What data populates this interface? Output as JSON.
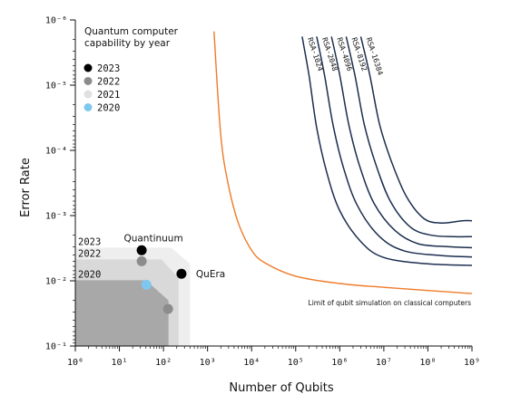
{
  "chart_data": {
    "type": "line",
    "xlabel": "Number of Qubits",
    "ylabel": "Error Rate",
    "x_scale": "log",
    "y_scale": "log",
    "xlim": [
      1,
      1000000000
    ],
    "ylim": [
      0.1,
      1e-06
    ],
    "x_ticks": [
      {
        "value": 1,
        "label": "10⁰"
      },
      {
        "value": 10,
        "label": "10¹"
      },
      {
        "value": 100,
        "label": "10²"
      },
      {
        "value": 1000,
        "label": "10³"
      },
      {
        "value": 10000,
        "label": "10⁴"
      },
      {
        "value": 100000,
        "label": "10⁵"
      },
      {
        "value": 1000000,
        "label": "10⁶"
      },
      {
        "value": 10000000,
        "label": "10⁷"
      },
      {
        "value": 100000000,
        "label": "10⁸"
      },
      {
        "value": 1000000000,
        "label": "10⁹"
      }
    ],
    "y_ticks": [
      {
        "value": 1e-06,
        "label": "10⁻⁶"
      },
      {
        "value": 1e-05,
        "label": "10⁻⁵"
      },
      {
        "value": 0.0001,
        "label": "10⁻⁴"
      },
      {
        "value": 0.001,
        "label": "10⁻³"
      },
      {
        "value": 0.01,
        "label": "10⁻²"
      },
      {
        "value": 0.1,
        "label": "10⁻¹"
      }
    ],
    "legend": {
      "title": "Quantum computer capability by year",
      "title_lines": [
        "Quantum computer",
        "capability by year"
      ],
      "placement": "top-left",
      "entries": [
        {
          "label": "2023",
          "color": "#000000"
        },
        {
          "label": "2022",
          "color": "#8c8c8c"
        },
        {
          "label": "2021",
          "color": "#e0e0e0"
        },
        {
          "label": "2020",
          "color": "#7ec8f0"
        }
      ]
    },
    "capability_regions": [
      {
        "label": "2023",
        "color": "#eeeeee",
        "max_qubits": 400,
        "corner_qubits": 150,
        "min_error": 0.0031,
        "corner_error": 0.0055
      },
      {
        "label": "2022",
        "color": "#d9d9d9",
        "max_qubits": 220,
        "corner_qubits": 90,
        "min_error": 0.0047,
        "corner_error": 0.009
      },
      {
        "label": "2020",
        "color": "#a8a8a8",
        "max_qubits": 130,
        "corner_qubits": 40,
        "min_error": 0.0098,
        "corner_error": 0.02
      }
    ],
    "points": [
      {
        "label": "Quantinuum",
        "x": 32,
        "y": 0.0034,
        "color": "#000000"
      },
      {
        "label": "QuEra",
        "x": 256,
        "y": 0.0078,
        "color": "#000000"
      },
      {
        "label": "",
        "x": 32,
        "y": 0.005,
        "color": "#8c8c8c"
      },
      {
        "label": "",
        "x": 127,
        "y": 0.027,
        "color": "#8c8c8c"
      },
      {
        "label": "",
        "x": 41,
        "y": 0.0115,
        "color": "#7ec8f0"
      }
    ],
    "classical_limit": {
      "label": "Limit of qubit simulation on classical computers",
      "color": "#ee7b2a",
      "points": [
        [
          1400,
          1.5e-06
        ],
        [
          2000,
          6e-05
        ],
        [
          3000,
          0.00035
        ],
        [
          5000,
          0.0013
        ],
        [
          10000,
          0.0034
        ],
        [
          20000,
          0.0053
        ],
        [
          100000,
          0.0085
        ],
        [
          1000000,
          0.011
        ],
        [
          10000000,
          0.0126
        ],
        [
          100000000,
          0.0141
        ],
        [
          1000000000,
          0.0157
        ]
      ]
    },
    "series": [
      {
        "name": "RSA-1024",
        "color": "#1c2e4f",
        "points": [
          [
            140000,
            1.8e-06
          ],
          [
            200000,
            7e-06
          ],
          [
            300000,
            4.5e-05
          ],
          [
            500000,
            0.00021
          ],
          [
            1000000,
            0.00084
          ],
          [
            3000000,
            0.0025
          ],
          [
            10000000,
            0.0044
          ],
          [
            100000000,
            0.0055
          ],
          [
            1000000000,
            0.0058
          ]
        ]
      },
      {
        "name": "RSA-2048",
        "color": "#1c2e4f",
        "points": [
          [
            300000,
            1.8e-06
          ],
          [
            450000,
            7e-06
          ],
          [
            700000,
            4e-05
          ],
          [
            1200000,
            0.00018
          ],
          [
            2500000,
            0.0007
          ],
          [
            8000000,
            0.0021
          ],
          [
            30000000,
            0.0035
          ],
          [
            200000000,
            0.0041
          ],
          [
            1000000000,
            0.0043
          ]
        ]
      },
      {
        "name": "RSA-4096",
        "color": "#1c2e4f",
        "points": [
          [
            650000,
            1.8e-06
          ],
          [
            1000000,
            7e-06
          ],
          [
            1600000,
            4e-05
          ],
          [
            2800000,
            0.00017
          ],
          [
            6000000,
            0.00065
          ],
          [
            18000000,
            0.0017
          ],
          [
            60000000,
            0.0027
          ],
          [
            300000000,
            0.003
          ],
          [
            1000000000,
            0.0031
          ]
        ]
      },
      {
        "name": "RSA-8192",
        "color": "#1c2e4f",
        "points": [
          [
            1400000,
            1.8e-06
          ],
          [
            2200000,
            7e-06
          ],
          [
            3600000,
            4e-05
          ],
          [
            6500000,
            0.00016
          ],
          [
            14000000,
            0.0006
          ],
          [
            40000000,
            0.0015
          ],
          [
            120000000,
            0.002
          ],
          [
            400000000,
            0.0021
          ],
          [
            1000000000,
            0.0021
          ]
        ]
      },
      {
        "name": "RSA-16384",
        "color": "#1c2e4f",
        "points": [
          [
            3000000,
            1.8e-06
          ],
          [
            4800000,
            7e-06
          ],
          [
            8000000,
            4e-05
          ],
          [
            15000000,
            0.00015
          ],
          [
            32000000,
            0.0005
          ],
          [
            80000000,
            0.0011
          ],
          [
            200000000,
            0.0013
          ],
          [
            600000000,
            0.0012
          ],
          [
            1000000000,
            0.0012
          ]
        ]
      }
    ]
  }
}
